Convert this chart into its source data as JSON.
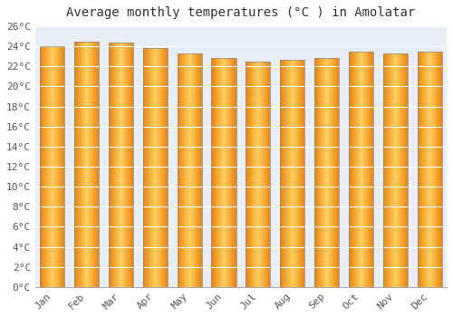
{
  "title": "Average monthly temperatures (°C ) in Amolatar",
  "months": [
    "Jan",
    "Feb",
    "Mar",
    "Apr",
    "May",
    "Jun",
    "Jul",
    "Aug",
    "Sep",
    "Oct",
    "Nov",
    "Dec"
  ],
  "temperatures": [
    24.0,
    24.5,
    24.4,
    23.8,
    23.3,
    22.8,
    22.5,
    22.7,
    22.8,
    23.5,
    23.3,
    23.5
  ],
  "bar_color": "#FFA500",
  "bar_edge_color": "#888888",
  "ylim": [
    0,
    26
  ],
  "ytick_step": 2,
  "background_color": "#ffffff",
  "plot_bg_color": "#e8eef8",
  "grid_color": "#ffffff",
  "title_fontsize": 10,
  "tick_fontsize": 8,
  "tick_font": "monospace"
}
